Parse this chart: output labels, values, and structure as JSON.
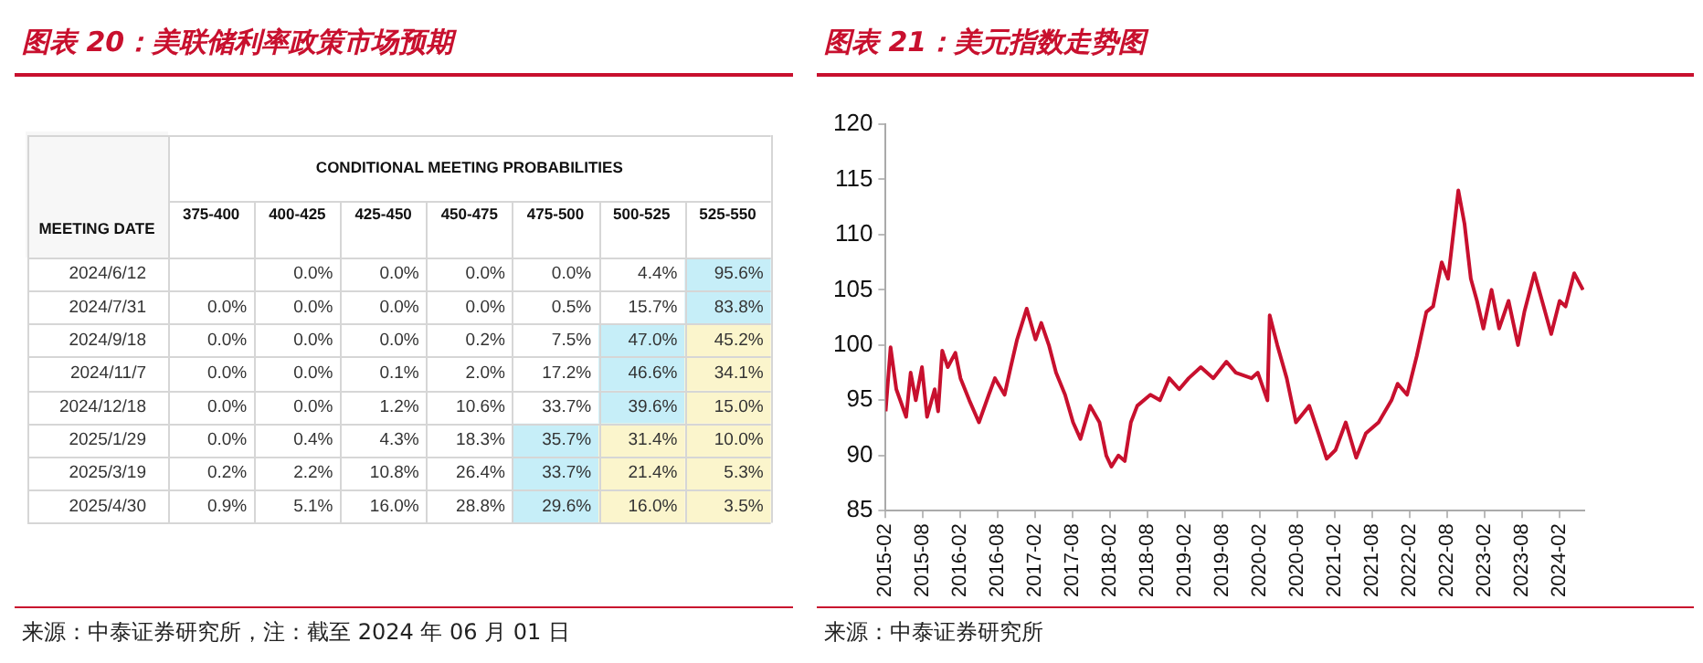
{
  "chart_data": [
    {
      "type": "heatmap",
      "title": "图表 20：美联储利率政策市场预期",
      "subtitle": "CONDITIONAL MEETING PROBABILITIES",
      "ylabel": "MEETING DATE",
      "categories": [
        "375-400",
        "400-425",
        "425-450",
        "450-475",
        "475-500",
        "500-525",
        "525-550"
      ],
      "y_categories": [
        "2024/6/12",
        "2024/7/31",
        "2024/9/18",
        "2024/11/7",
        "2024/12/18",
        "2025/1/29",
        "2025/3/19",
        "2025/4/30"
      ],
      "cells": [
        [
          null,
          0.0,
          0.0,
          0.0,
          0.0,
          4.4,
          95.6
        ],
        [
          0.0,
          0.0,
          0.0,
          0.0,
          0.5,
          15.7,
          83.8
        ],
        [
          0.0,
          0.0,
          0.0,
          0.2,
          7.5,
          47.0,
          45.2
        ],
        [
          0.0,
          0.0,
          0.1,
          2.0,
          17.2,
          46.6,
          34.1
        ],
        [
          0.0,
          0.0,
          1.2,
          10.6,
          33.7,
          39.6,
          15.0
        ],
        [
          0.0,
          0.4,
          4.3,
          18.3,
          35.7,
          31.4,
          10.0
        ],
        [
          0.2,
          2.2,
          10.8,
          26.4,
          33.7,
          21.4,
          5.3
        ],
        [
          0.9,
          5.1,
          16.0,
          28.8,
          29.6,
          16.0,
          3.5
        ]
      ],
      "cell_labels": [
        [
          null,
          "0.0%",
          "0.0%",
          "0.0%",
          "0.0%",
          "4.4%",
          "95.6%"
        ],
        [
          "0.0%",
          "0.0%",
          "0.0%",
          "0.0%",
          "0.5%",
          "15.7%",
          "83.8%"
        ],
        [
          "0.0%",
          "0.0%",
          "0.0%",
          "0.2%",
          "7.5%",
          "47.0%",
          "45.2%"
        ],
        [
          "0.0%",
          "0.0%",
          "0.1%",
          "2.0%",
          "17.2%",
          "46.6%",
          "34.1%"
        ],
        [
          "0.0%",
          "0.0%",
          "1.2%",
          "10.6%",
          "33.7%",
          "39.6%",
          "15.0%"
        ],
        [
          "0.0%",
          "0.4%",
          "4.3%",
          "18.3%",
          "35.7%",
          "31.4%",
          "10.0%"
        ],
        [
          "0.2%",
          "2.2%",
          "10.8%",
          "26.4%",
          "33.7%",
          "21.4%",
          "5.3%"
        ],
        [
          "0.9%",
          "5.1%",
          "16.0%",
          "28.8%",
          "29.6%",
          "16.0%",
          "3.5%"
        ]
      ],
      "colors": [
        [
          null,
          null,
          null,
          null,
          null,
          null,
          "#c6eef8"
        ],
        [
          null,
          null,
          null,
          null,
          null,
          null,
          "#c6eef8"
        ],
        [
          null,
          null,
          null,
          null,
          null,
          "#c6eef8",
          "#fbf5cc"
        ],
        [
          null,
          null,
          null,
          null,
          null,
          "#c6eef8",
          "#fbf5cc"
        ],
        [
          null,
          null,
          null,
          null,
          null,
          "#c6eef8",
          "#fbf5cc"
        ],
        [
          null,
          null,
          null,
          null,
          "#c6eef8",
          "#fbf5cc",
          "#fbf5cc"
        ],
        [
          null,
          null,
          null,
          null,
          "#c6eef8",
          "#fbf5cc",
          "#fbf5cc"
        ],
        [
          null,
          null,
          null,
          null,
          "#c6eef8",
          "#fbf5cc",
          "#fbf5cc"
        ]
      ],
      "annotations": [
        "来源：中泰证券研究所，注：截至 2024 年 06 月 01 日"
      ]
    },
    {
      "type": "line",
      "title": "图表 21：美元指数走势图",
      "marker": "none",
      "x": [
        "2015-02-01",
        "2015-02-25",
        "2015-03-25",
        "2015-05-12",
        "2015-06-03",
        "2015-06-28",
        "2015-07-28",
        "2015-08-22",
        "2015-09-28",
        "2015-10-15",
        "2015-11-04",
        "2015-12-01",
        "2016-01-07",
        "2016-02-01",
        "2016-03-15",
        "2016-05-01",
        "2016-06-18",
        "2016-07-18",
        "2016-09-03",
        "2016-10-03",
        "2016-11-03",
        "2016-12-20",
        "2017-02-01",
        "2017-03-01",
        "2017-04-07",
        "2017-05-12",
        "2017-06-25",
        "2017-08-03",
        "2017-09-08",
        "2017-10-25",
        "2017-12-10",
        "2018-01-12",
        "2018-02-06",
        "2018-03-12",
        "2018-04-12",
        "2018-05-12",
        "2018-06-12",
        "2018-08-15",
        "2018-10-01",
        "2018-11-15",
        "2019-01-03",
        "2019-02-18",
        "2019-04-18",
        "2019-06-18",
        "2019-08-21",
        "2019-10-06",
        "2019-12-21",
        "2020-01-21",
        "2020-03-08",
        "2020-03-19",
        "2020-04-25",
        "2020-06-10",
        "2020-07-25",
        "2020-09-28",
        "2020-11-12",
        "2020-12-22",
        "2021-02-03",
        "2021-03-25",
        "2021-05-15",
        "2021-07-01",
        "2021-09-01",
        "2021-11-03",
        "2021-12-03",
        "2022-01-18",
        "2022-03-06",
        "2022-04-22",
        "2022-05-25",
        "2022-07-06",
        "2022-08-06",
        "2022-09-25",
        "2022-10-25",
        "2022-11-25",
        "2022-12-25",
        "2023-01-25",
        "2023-03-06",
        "2023-04-12",
        "2023-05-28",
        "2023-07-13",
        "2023-08-13",
        "2023-10-01",
        "2023-11-15",
        "2023-12-22",
        "2024-02-01",
        "2024-03-01",
        "2024-04-12",
        "2024-05-25"
      ],
      "series": [
        {
          "color": "#c8102e",
          "values": [
            94,
            99.8,
            96,
            93.5,
            97.5,
            95,
            98,
            93.5,
            96,
            94,
            99.5,
            98,
            99.3,
            97,
            95,
            93,
            95.5,
            97,
            95.5,
            98,
            100.5,
            103.3,
            100.5,
            102,
            100,
            97.5,
            95.5,
            93,
            91.5,
            94.5,
            93,
            90,
            89,
            90,
            89.5,
            93,
            94.5,
            95.5,
            95,
            97,
            96,
            97,
            98,
            97,
            98.5,
            97.5,
            97,
            97.5,
            95,
            102.7,
            100,
            97,
            93,
            94.5,
            92,
            89.7,
            90.5,
            93,
            89.8,
            92,
            93,
            95,
            96.5,
            95.5,
            99,
            103,
            103.5,
            107.5,
            106,
            114,
            111,
            106,
            104,
            101.5,
            105,
            101.5,
            104,
            100,
            103,
            106.5,
            103.5,
            101,
            104,
            103.5,
            106.5,
            105
          ]
        }
      ],
      "xlim": [
        "2015-02-01",
        "2024-05-31"
      ],
      "xticks": [
        "2015-02",
        "2015-08",
        "2016-02",
        "2016-08",
        "2017-02",
        "2017-08",
        "2018-02",
        "2018-08",
        "2019-02",
        "2019-08",
        "2020-02",
        "2020-08",
        "2021-02",
        "2021-08",
        "2022-02",
        "2022-08",
        "2023-02",
        "2023-08",
        "2024-02"
      ],
      "ylim": [
        85,
        120
      ],
      "yticks": [
        85,
        90,
        95,
        100,
        105,
        110,
        115,
        120
      ],
      "annotations": [
        "来源：中泰证券研究所"
      ]
    }
  ]
}
